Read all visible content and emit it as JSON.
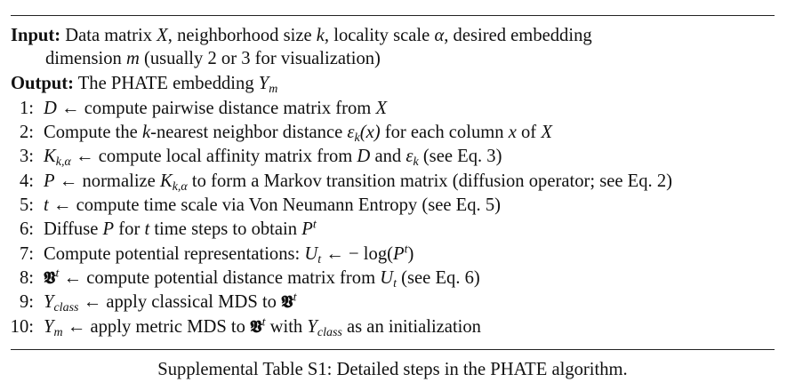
{
  "input": {
    "label": "Input:",
    "text_1": " Data matrix ",
    "X": "X",
    "text_2": ", neighborhood size ",
    "k": "k",
    "text_3": ", locality scale ",
    "alpha": "α",
    "text_4": ", desired embedding",
    "cont_1": "dimension ",
    "m": "m",
    "cont_2": " (usually 2 or 3 for visualization)"
  },
  "output": {
    "label": "Output:",
    "text_1": " The PHATE embedding ",
    "Y": "Y",
    "Y_sub": "m"
  },
  "steps": [
    {
      "num": "1:"
    },
    {
      "num": "2:"
    },
    {
      "num": "3:"
    },
    {
      "num": "4:"
    },
    {
      "num": "5:"
    },
    {
      "num": "6:"
    },
    {
      "num": "7:"
    },
    {
      "num": "8:"
    },
    {
      "num": "9:"
    },
    {
      "num": "10:"
    }
  ],
  "s1": {
    "D": "D",
    "arrow": " ← ",
    "t1": "compute pairwise distance matrix from ",
    "X": "X"
  },
  "s2": {
    "t1": "Compute the ",
    "k": "k",
    "t2": "-nearest neighbor distance ",
    "eps": "ε",
    "eps_sub": "k",
    "arg": "(x)",
    "t3": " for each column ",
    "x": "x",
    "t4": " of ",
    "X": "X"
  },
  "s3": {
    "K": "K",
    "K_sub": "k,α",
    "arrow": " ← ",
    "t1": "compute local affinity matrix from ",
    "D": "D",
    "t2": " and ",
    "eps": "ε",
    "eps_sub": "k",
    "t3": " (see Eq. 3)"
  },
  "s4": {
    "P": "P",
    "arrow": " ← ",
    "t1": "normalize ",
    "K": "K",
    "K_sub": "k,α",
    "t2": " to form a Markov transition matrix (diffusion operator; see Eq. 2)"
  },
  "s5": {
    "t": "t",
    "arrow": " ← ",
    "t1": "compute time scale via Von Neumann Entropy (see Eq. 5)"
  },
  "s6": {
    "t1": "Diffuse ",
    "P": "P",
    "t2": " for ",
    "t": "t",
    "t3": " time steps to obtain ",
    "P2": "P",
    "P2_sup": "t"
  },
  "s7": {
    "t1": "Compute potential representations: ",
    "U": "U",
    "U_sub": "t",
    "arrow": " ← ",
    "t2": "− log(",
    "P": "P",
    "P_sup": "t",
    "t3": ")"
  },
  "s8": {
    "V": "𝖁",
    "V_sup": "t",
    "arrow": " ← ",
    "t1": "compute potential distance matrix from ",
    "U": "U",
    "U_sub": "t",
    "t2": " (see Eq. 6)"
  },
  "s9": {
    "Y": "Y",
    "Y_sub": "class",
    "arrow": " ← ",
    "t1": "apply classical MDS to ",
    "V": "𝖁",
    "V_sup": "t"
  },
  "s10": {
    "Y": "Y",
    "Y_sub": "m",
    "arrow": " ← ",
    "t1": "apply metric MDS to ",
    "V": "𝖁",
    "V_sup": "t",
    "t2": " with ",
    "Y2": "Y",
    "Y2_sub": "class",
    "t3": " as an initialization"
  },
  "caption": "Supplemental Table S1: Detailed steps in the PHATE algorithm."
}
